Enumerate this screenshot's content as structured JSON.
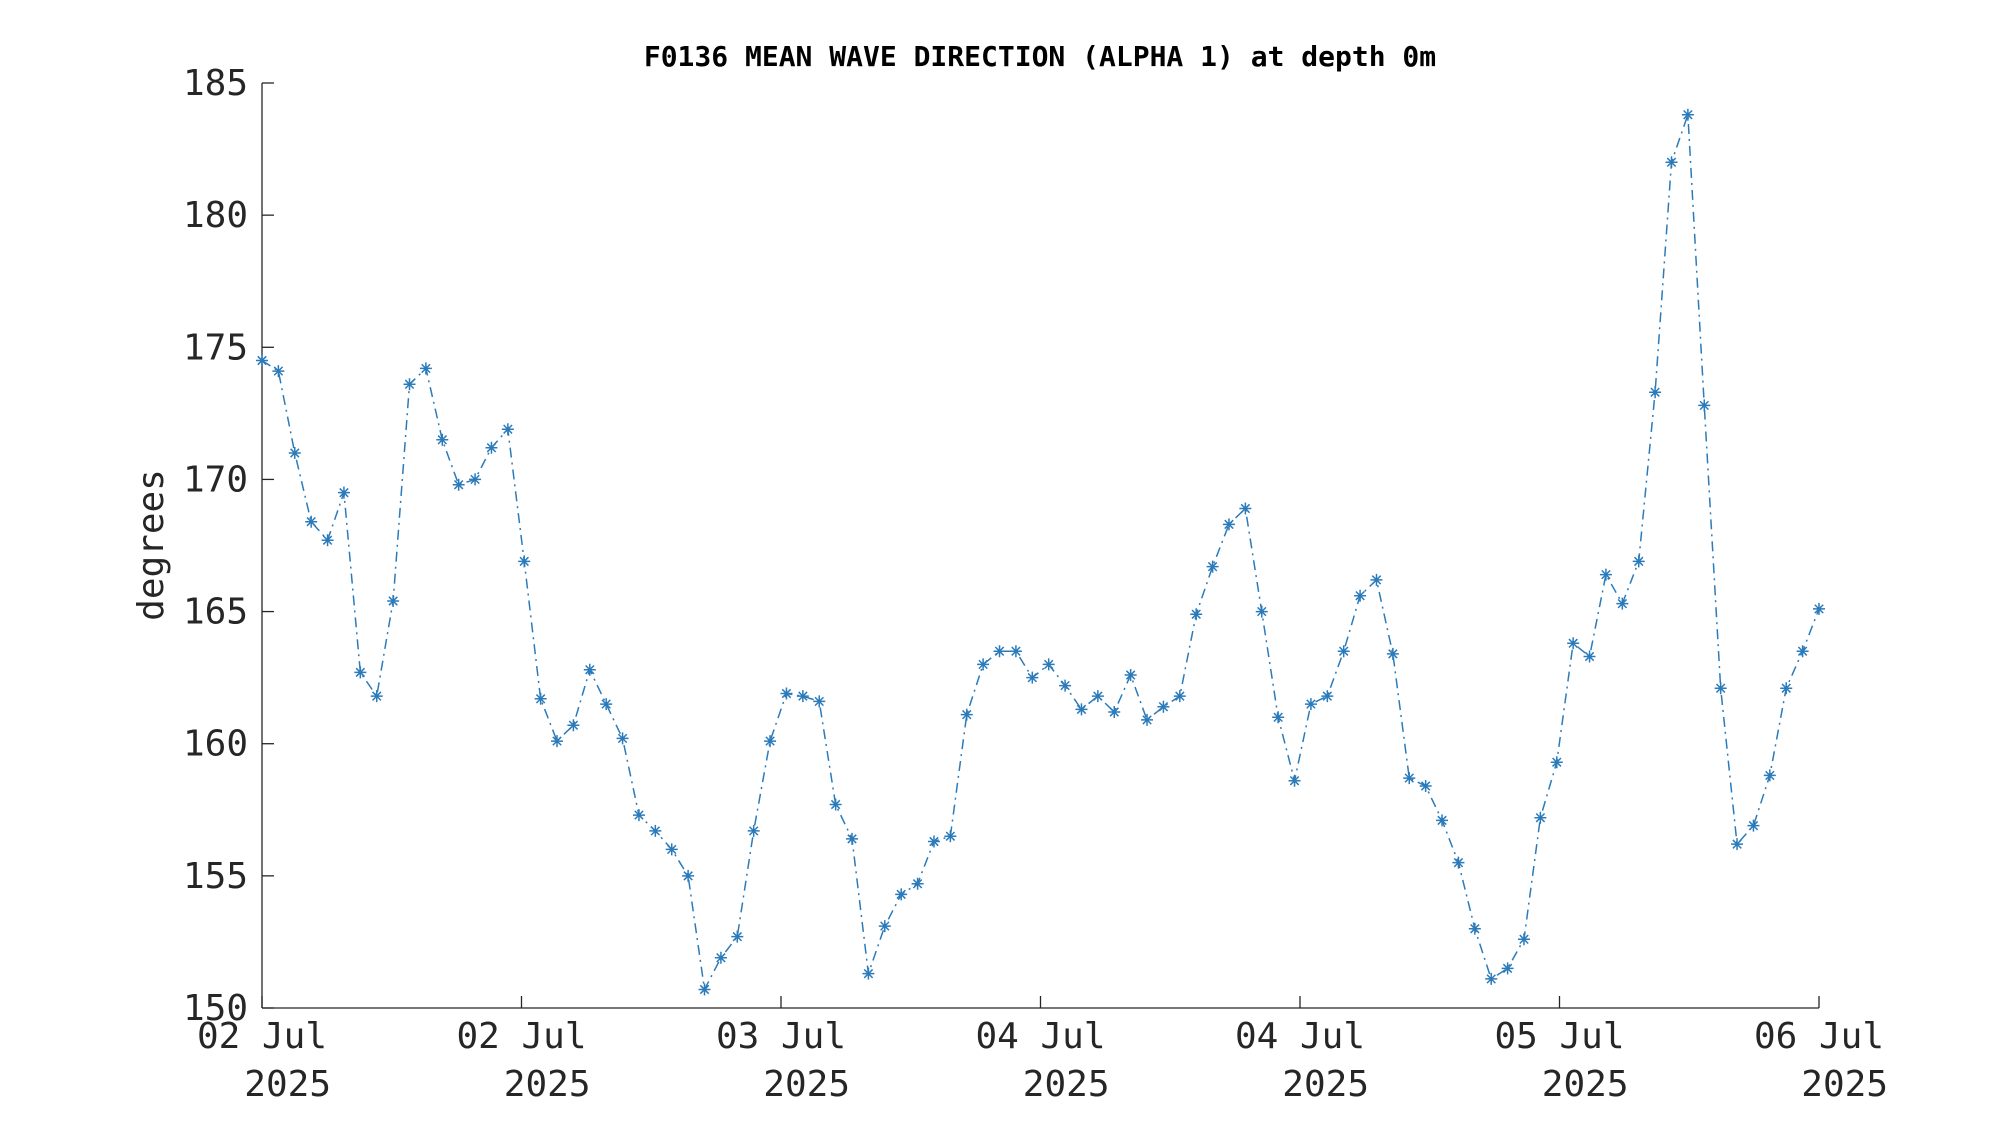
{
  "chart_data": {
    "type": "line",
    "title": "F0136 MEAN WAVE DIRECTION (ALPHA 1) at depth 0m",
    "ylabel": "degrees",
    "xtick_labels": [
      [
        "02 Jul",
        "2025"
      ],
      [
        "02 Jul",
        "2025"
      ],
      [
        "03 Jul",
        "2025"
      ],
      [
        "04 Jul",
        "2025"
      ],
      [
        "04 Jul",
        "2025"
      ],
      [
        "05 Jul",
        "2025"
      ],
      [
        "06 Jul",
        "2025"
      ]
    ],
    "ylim": [
      150,
      185
    ],
    "yticks": [
      150,
      155,
      160,
      165,
      170,
      175,
      180,
      185
    ],
    "series": [
      {
        "color": "#2b7bba",
        "values": [
          174.5,
          174.1,
          171.0,
          168.4,
          167.7,
          169.5,
          162.7,
          161.8,
          165.4,
          173.6,
          174.2,
          171.5,
          169.8,
          170.0,
          171.2,
          171.9,
          166.9,
          161.7,
          160.1,
          160.7,
          162.8,
          161.5,
          160.2,
          157.3,
          156.7,
          156.0,
          155.0,
          150.7,
          151.9,
          152.7,
          156.7,
          160.1,
          161.9,
          161.8,
          161.6,
          157.7,
          156.4,
          151.3,
          153.1,
          154.3,
          154.7,
          156.3,
          156.5,
          161.1,
          163.0,
          163.5,
          163.5,
          162.5,
          163.0,
          162.2,
          161.3,
          161.8,
          161.2,
          162.6,
          160.9,
          161.4,
          161.8,
          164.9,
          166.7,
          168.3,
          168.9,
          165.0,
          161.0,
          158.6,
          161.5,
          161.8,
          163.5,
          165.6,
          166.2,
          163.4,
          158.7,
          158.4,
          157.1,
          155.5,
          153.0,
          151.1,
          151.5,
          152.6,
          157.2,
          159.3,
          163.8,
          163.3,
          166.4,
          165.3,
          166.9,
          173.3,
          182.0,
          183.8,
          172.8,
          162.1,
          156.2,
          156.9,
          158.8,
          162.1,
          163.5,
          165.1
        ]
      }
    ]
  }
}
